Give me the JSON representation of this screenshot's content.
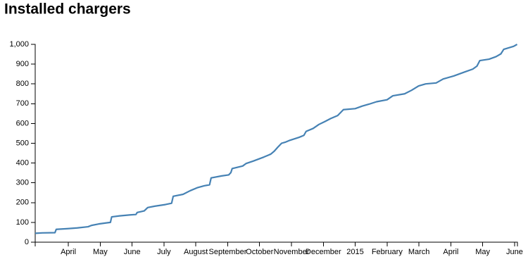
{
  "chart_data": {
    "type": "line",
    "title": "Installed chargers",
    "color": "#4682b4",
    "x": [
      2.96,
      3.18,
      3.58,
      3.62,
      3.95,
      4.28,
      4.62,
      4.73,
      4.95,
      5.17,
      5.32,
      5.36,
      5.61,
      5.94,
      6.12,
      6.16,
      6.38,
      6.49,
      6.71,
      7.04,
      7.24,
      7.29,
      7.6,
      7.82,
      8.04,
      8.26,
      8.43,
      8.48,
      8.81,
      9.03,
      9.1,
      9.14,
      9.47,
      9.58,
      9.8,
      10.13,
      10.35,
      10.46,
      10.57,
      10.69,
      10.8,
      10.95,
      11.24,
      11.39,
      11.46,
      11.68,
      11.86,
      12.05,
      12.23,
      12.45,
      12.63,
      13.0,
      13.22,
      13.44,
      13.67,
      14.0,
      14.18,
      14.55,
      14.77,
      14.99,
      15.21,
      15.54,
      15.76,
      16.09,
      16.43,
      16.69,
      16.82,
      16.91,
      17.2,
      17.42,
      17.57,
      17.66,
      17.97,
      18.08
    ],
    "values": [
      45,
      47,
      48,
      65,
      68,
      72,
      78,
      85,
      92,
      97,
      100,
      128,
      133,
      138,
      140,
      150,
      158,
      175,
      182,
      190,
      197,
      232,
      242,
      260,
      275,
      285,
      290,
      325,
      335,
      340,
      352,
      372,
      385,
      398,
      410,
      430,
      445,
      460,
      480,
      500,
      505,
      515,
      530,
      540,
      560,
      575,
      595,
      610,
      625,
      640,
      670,
      675,
      688,
      698,
      710,
      720,
      740,
      750,
      768,
      790,
      800,
      805,
      825,
      840,
      860,
      875,
      890,
      918,
      925,
      938,
      952,
      975,
      990,
      1000
    ],
    "xlim": [
      2.96,
      18.09
    ],
    "xticks": [
      {
        "value": 4,
        "label": "April"
      },
      {
        "value": 5,
        "label": "May"
      },
      {
        "value": 6,
        "label": "June"
      },
      {
        "value": 7,
        "label": "July"
      },
      {
        "value": 8,
        "label": "August"
      },
      {
        "value": 9,
        "label": "September"
      },
      {
        "value": 10,
        "label": "October"
      },
      {
        "value": 11,
        "label": "November"
      },
      {
        "value": 12,
        "label": "December"
      },
      {
        "value": 13,
        "label": "2015"
      },
      {
        "value": 14,
        "label": "February"
      },
      {
        "value": 15,
        "label": "March"
      },
      {
        "value": 16,
        "label": "April"
      },
      {
        "value": 17,
        "label": "May"
      },
      {
        "value": 18,
        "label": "June"
      }
    ],
    "ylim": [
      0,
      1000
    ],
    "yticks": [
      0,
      100,
      200,
      300,
      400,
      500,
      600,
      700,
      800,
      900,
      {
        "value": 1000,
        "label": "1,000"
      }
    ],
    "grid": false
  }
}
